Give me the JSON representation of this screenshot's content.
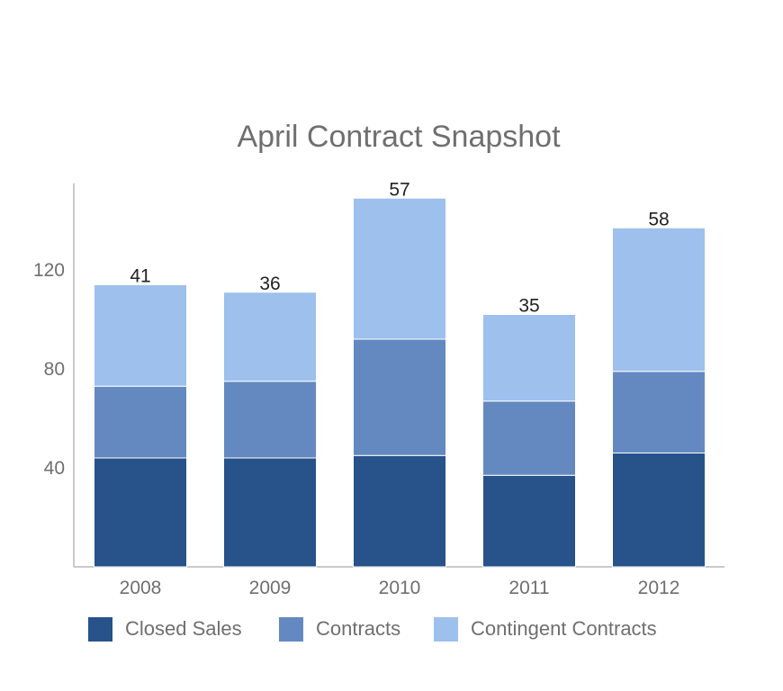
{
  "chart_data": {
    "type": "bar",
    "stacked": true,
    "title": "April Contract Snapshot",
    "xlabel": "",
    "ylabel": "",
    "categories": [
      "2008",
      "2009",
      "2010",
      "2011",
      "2012"
    ],
    "series": [
      {
        "name": "Closed Sales",
        "color": "#27528a",
        "values": [
          44,
          44,
          45,
          37,
          46
        ]
      },
      {
        "name": "Contracts",
        "color": "#6389c0",
        "values": [
          29,
          31,
          47,
          30,
          33
        ]
      },
      {
        "name": "Contingent Contracts",
        "color": "#9dc0ec",
        "values": [
          41,
          36,
          57,
          35,
          58
        ]
      }
    ],
    "yticks": [
      "40",
      "80",
      "120"
    ],
    "ylim": [
      0,
      155
    ],
    "grid": false,
    "legend": "bottom"
  }
}
